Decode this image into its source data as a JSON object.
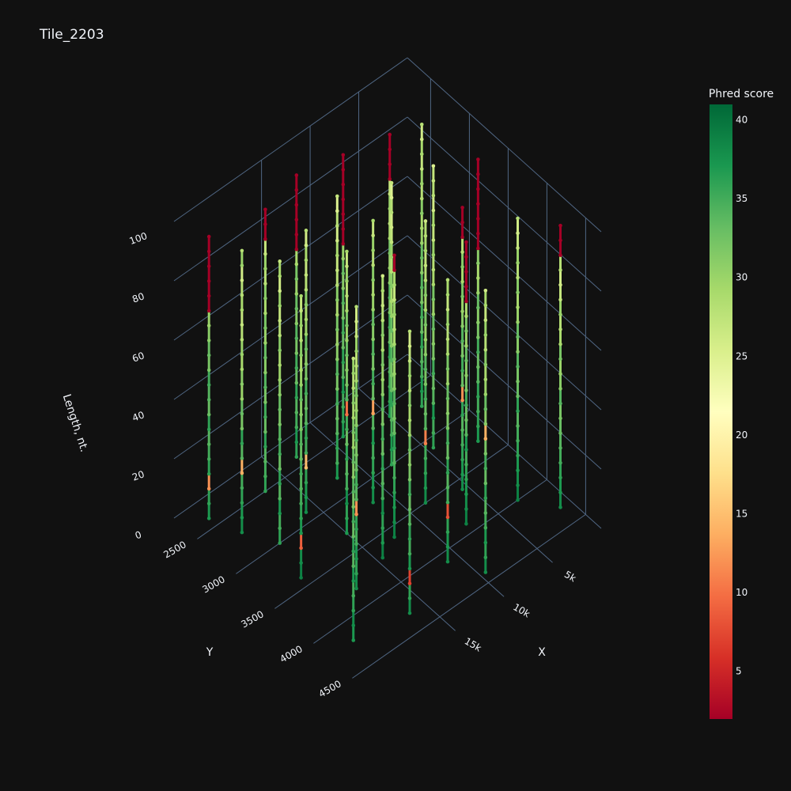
{
  "chart_data": {
    "type": "scatter3d",
    "title": "Tile_2203",
    "xaxis": {
      "title": "X",
      "xlim": [
        0,
        24000
      ],
      "xticks": [
        {
          "value": 5000,
          "label": "5k"
        },
        {
          "value": 10000,
          "label": "10k"
        },
        {
          "value": 15000,
          "label": "15k"
        }
      ]
    },
    "yaxis": {
      "title": "Y",
      "ylim": [
        2200,
        4700
      ],
      "yticks": [
        2500,
        3000,
        3500,
        4000,
        4500
      ]
    },
    "zaxis": {
      "title": "Length, nt.",
      "zlim": [
        0,
        100
      ],
      "zticks": [
        0,
        20,
        40,
        60,
        80,
        100
      ]
    },
    "colorbar": {
      "title": "Phred score",
      "clim": [
        2,
        41
      ],
      "ticks": [
        5,
        10,
        15,
        20,
        25,
        30,
        35,
        40
      ]
    },
    "colorscale": [
      "#a50026",
      "#d73027",
      "#f46d43",
      "#fdae61",
      "#fee08b",
      "#ffffbf",
      "#d9ef8b",
      "#a6d96a",
      "#66bd63",
      "#1a9850",
      "#006837"
    ],
    "z": [
      0,
      5,
      10,
      15,
      20,
      25,
      30,
      35,
      40,
      45,
      50,
      55,
      60,
      65,
      70,
      75,
      80,
      85,
      90,
      95
    ],
    "series": [
      {
        "x": 22000,
        "y": 2400,
        "values": [
          37,
          36,
          12,
          36,
          35,
          34,
          36,
          33,
          34,
          35,
          32,
          33,
          31,
          30,
          2,
          2,
          2,
          2,
          2,
          2
        ]
      },
      {
        "x": 21000,
        "y": 2700,
        "values": [
          38,
          37,
          36,
          35,
          14,
          34,
          36,
          32,
          33,
          30,
          31,
          29,
          30,
          28,
          27,
          29,
          28,
          26,
          30,
          28
        ]
      },
      {
        "x": 19500,
        "y": 3000,
        "values": [
          36,
          35,
          37,
          34,
          36,
          33,
          35,
          34,
          32,
          33,
          31,
          30,
          29,
          31,
          28,
          27,
          30,
          26,
          29,
          27
        ]
      },
      {
        "x": 20500,
        "y": 3400,
        "values": [
          39,
          38,
          9,
          37,
          36,
          35,
          34,
          35,
          33,
          34,
          32,
          31,
          33,
          30,
          29,
          31,
          28,
          30,
          27,
          29
        ]
      },
      {
        "x": 18000,
        "y": 3800,
        "values": [
          38,
          36,
          37,
          35,
          36,
          12,
          34,
          35,
          33,
          32,
          34,
          31,
          30,
          32,
          29,
          28,
          30,
          27,
          26,
          28
        ]
      },
      {
        "x": 21500,
        "y": 4200,
        "values": [
          37,
          38,
          36,
          35,
          37,
          34,
          36,
          33,
          35,
          32,
          34,
          31,
          33,
          30,
          32,
          29,
          31,
          28,
          30,
          27
        ]
      },
      {
        "x": 17000,
        "y": 2500,
        "values": [
          36,
          35,
          34,
          36,
          33,
          35,
          32,
          34,
          31,
          33,
          30,
          32,
          29,
          31,
          28,
          30,
          27,
          2,
          2,
          2
        ]
      },
      {
        "x": 16000,
        "y": 2900,
        "values": [
          38,
          37,
          36,
          15,
          35,
          36,
          34,
          33,
          35,
          32,
          31,
          33,
          30,
          29,
          31,
          28,
          27,
          29,
          26,
          28
        ]
      },
      {
        "x": 15000,
        "y": 3300,
        "values": [
          37,
          36,
          38,
          35,
          34,
          36,
          33,
          35,
          10,
          34,
          32,
          31,
          33,
          30,
          32,
          29,
          28,
          30,
          27,
          29
        ]
      },
      {
        "x": 14500,
        "y": 3700,
        "values": [
          39,
          37,
          36,
          38,
          35,
          34,
          36,
          33,
          35,
          32,
          34,
          31,
          30,
          32,
          29,
          31,
          28,
          27,
          29,
          26
        ]
      },
      {
        "x": 16500,
        "y": 4300,
        "values": [
          38,
          36,
          7,
          37,
          35,
          36,
          34,
          33,
          35,
          32,
          31,
          33,
          30,
          29,
          31,
          28,
          30,
          27,
          26,
          28
        ]
      },
      {
        "x": 13000,
        "y": 2400,
        "values": [
          36,
          37,
          35,
          34,
          36,
          33,
          35,
          32,
          34,
          31,
          33,
          30,
          32,
          29,
          2,
          2,
          2,
          2,
          2,
          2
        ]
      },
      {
        "x": 12000,
        "y": 2800,
        "values": [
          37,
          35,
          36,
          34,
          33,
          35,
          32,
          34,
          31,
          30,
          32,
          29,
          31,
          28,
          27,
          29,
          26,
          28,
          25,
          27
        ]
      },
      {
        "x": 11500,
        "y": 3200,
        "values": [
          38,
          37,
          36,
          35,
          37,
          34,
          13,
          33,
          35,
          32,
          34,
          31,
          33,
          30,
          29,
          31,
          28,
          30,
          27,
          29
        ]
      },
      {
        "x": 12500,
        "y": 3600,
        "values": [
          39,
          38,
          37,
          36,
          35,
          34,
          36,
          33,
          32,
          34,
          31,
          30,
          32,
          29,
          28,
          30,
          27,
          29,
          2,
          2
        ]
      },
      {
        "x": 11000,
        "y": 4100,
        "values": [
          38,
          37,
          36,
          8,
          35,
          34,
          36,
          33,
          35,
          32,
          31,
          33,
          30,
          32,
          29,
          28,
          30,
          27,
          29,
          28
        ]
      },
      {
        "x": 9000,
        "y": 2500,
        "values": [
          37,
          36,
          35,
          37,
          34,
          36,
          33,
          35,
          32,
          34,
          31,
          33,
          30,
          2,
          2,
          2,
          2,
          2,
          2,
          2
        ]
      },
      {
        "x": 8000,
        "y": 3000,
        "values": [
          36,
          37,
          35,
          34,
          36,
          33,
          32,
          34,
          31,
          33,
          30,
          29,
          31,
          28,
          30,
          27,
          26,
          28,
          25,
          27
        ]
      },
      {
        "x": 8500,
        "y": 3500,
        "values": [
          38,
          37,
          36,
          35,
          11,
          34,
          33,
          35,
          32,
          34,
          31,
          30,
          32,
          29,
          31,
          28,
          27,
          29,
          28,
          26
        ]
      },
      {
        "x": 7500,
        "y": 3900,
        "values": [
          39,
          38,
          37,
          36,
          35,
          37,
          34,
          33,
          35,
          32,
          31,
          33,
          30,
          32,
          29,
          2,
          2,
          2,
          2,
          2
        ]
      },
      {
        "x": 9500,
        "y": 4400,
        "values": [
          38,
          36,
          37,
          35,
          34,
          36,
          33,
          35,
          32,
          14,
          31,
          33,
          30,
          29,
          31,
          28,
          30,
          27,
          29,
          26
        ]
      },
      {
        "x": 5000,
        "y": 2600,
        "values": [
          37,
          36,
          35,
          34,
          36,
          33,
          35,
          32,
          34,
          31,
          30,
          32,
          29,
          28,
          30,
          27,
          2,
          2,
          2,
          2
        ]
      },
      {
        "x": 4500,
        "y": 3100,
        "values": [
          36,
          35,
          37,
          34,
          33,
          35,
          32,
          31,
          33,
          30,
          32,
          29,
          28,
          30,
          27,
          29,
          26,
          28,
          27,
          25
        ]
      },
      {
        "x": 5500,
        "y": 3600,
        "values": [
          38,
          37,
          36,
          35,
          34,
          36,
          12,
          33,
          35,
          32,
          34,
          31,
          30,
          32,
          29,
          31,
          28,
          2,
          2,
          2
        ]
      },
      {
        "x": 3000,
        "y": 4000,
        "values": [
          39,
          38,
          37,
          36,
          35,
          34,
          36,
          33,
          32,
          34,
          31,
          33,
          30,
          29,
          31,
          28,
          30,
          27,
          26,
          28
        ]
      },
      {
        "x": 1500,
        "y": 3300,
        "values": [
          37,
          36,
          35,
          36,
          34,
          33,
          35,
          32,
          31,
          33,
          30,
          29,
          31,
          2,
          2,
          2,
          2,
          2,
          2,
          2
        ]
      },
      {
        "x": 1000,
        "y": 4300,
        "values": [
          38,
          37,
          36,
          35,
          34,
          33,
          32,
          34,
          31,
          30,
          32,
          29,
          28,
          30,
          27,
          26,
          28,
          2,
          2,
          2
        ]
      },
      {
        "x": 2500,
        "y": 2700,
        "values": [
          36,
          37,
          35,
          34,
          36,
          33,
          35,
          32,
          34,
          31,
          33,
          30,
          29,
          31,
          28,
          30,
          27,
          29,
          26,
          28
        ]
      }
    ]
  }
}
